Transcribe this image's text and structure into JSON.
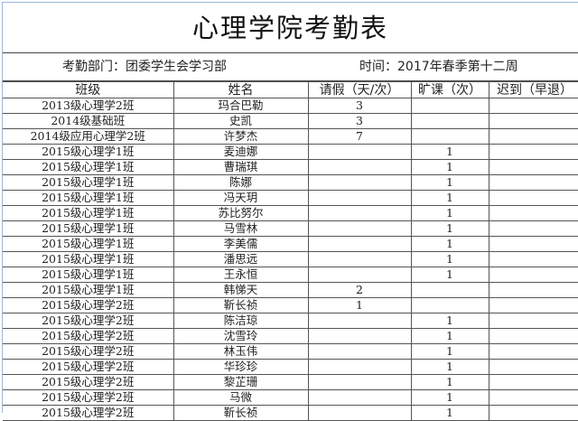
{
  "title": "心理学院考勤表",
  "department": "考勤部门：团委学生会学习部",
  "time": "时间：2017年春季第十二周",
  "columns": [
    "班级",
    "姓名",
    "请假（天/次）",
    "旷课（次）",
    "迟到（早退）"
  ],
  "rows": [
    [
      "2013级心理学2班",
      "玛合巴勒",
      "3",
      "",
      ""
    ],
    [
      "2014级基础班",
      "史凯",
      "3",
      "",
      ""
    ],
    [
      "2014级应用心理学2班",
      "许梦杰",
      "7",
      "",
      ""
    ],
    [
      "2015级心理学1班",
      "麦迪娜",
      "",
      "1",
      ""
    ],
    [
      "2015级心理学1班",
      "曹瑞琪",
      "",
      "1",
      ""
    ],
    [
      "2015级心理学1班",
      "陈娜",
      "",
      "1",
      ""
    ],
    [
      "2015级心理学1班",
      "冯天玥",
      "",
      "1",
      ""
    ],
    [
      "2015级心理学1班",
      "苏比努尔",
      "",
      "1",
      ""
    ],
    [
      "2015级心理学1班",
      "马雪林",
      "",
      "1",
      ""
    ],
    [
      "2015级心理学1班",
      "李美儒",
      "",
      "1",
      ""
    ],
    [
      "2015级心理学1班",
      "潘思远",
      "",
      "1",
      ""
    ],
    [
      "2015级心理学1班",
      "王永恒",
      "",
      "1",
      ""
    ],
    [
      "2015级心理学1班",
      "韩悌天",
      "2",
      "",
      ""
    ],
    [
      "2015级心理学2班",
      "靳长祯",
      "1",
      "",
      ""
    ],
    [
      "2015级心理学2班",
      "陈洁琼",
      "",
      "1",
      ""
    ],
    [
      "2015级心理学2班",
      "沈雪玲",
      "",
      "1",
      ""
    ],
    [
      "2015级心理学2班",
      "林玉伟",
      "",
      "1",
      ""
    ],
    [
      "2015级心理学2班",
      "华珍珍",
      "",
      "1",
      ""
    ],
    [
      "2015级心理学2班",
      "黎芷珊",
      "",
      "1",
      ""
    ],
    [
      "2015级心理学2班",
      "马微",
      "",
      "1",
      ""
    ],
    [
      "2015级心理学2班",
      "靳长祯",
      "",
      "1",
      ""
    ]
  ]
}
